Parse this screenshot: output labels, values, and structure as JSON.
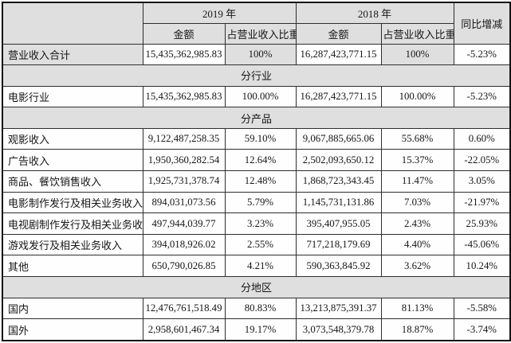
{
  "table": {
    "header": {
      "corner": "",
      "year_2019": "2019 年",
      "year_2018": "2018 年",
      "yoy": "同比增减",
      "amount": "金额",
      "share": "占营业收入比重"
    },
    "rows": [
      {
        "type": "data",
        "highlight": true,
        "label": "营业收入合计",
        "cells": [
          "15,435,362,985.83",
          "100%",
          "16,287,423,771.15",
          "100%",
          "-5.23%"
        ]
      },
      {
        "type": "section",
        "label": "分行业"
      },
      {
        "type": "data",
        "highlight": false,
        "label": "电影行业",
        "cells": [
          "15,435,362,985.83",
          "100.00%",
          "16,287,423,771.15",
          "100.00%",
          "-5.23%"
        ]
      },
      {
        "type": "section",
        "label": "分产品"
      },
      {
        "type": "data",
        "highlight": false,
        "label": "观影收入",
        "cells": [
          "9,122,487,258.35",
          "59.10%",
          "9,067,885,665.06",
          "55.68%",
          "0.60%"
        ]
      },
      {
        "type": "data",
        "highlight": false,
        "label": "广告收入",
        "cells": [
          "1,950,360,282.54",
          "12.64%",
          "2,502,093,650.12",
          "15.37%",
          "-22.05%"
        ]
      },
      {
        "type": "data",
        "highlight": false,
        "label": "商品、餐饮销售收入",
        "cells": [
          "1,925,731,378.74",
          "12.48%",
          "1,868,723,343.45",
          "11.47%",
          "3.05%"
        ]
      },
      {
        "type": "data",
        "highlight": false,
        "label": "电影制作发行及相关业务收入",
        "cells": [
          "894,031,073.56",
          "5.79%",
          "1,145,731,131.86",
          "7.03%",
          "-21.97%"
        ]
      },
      {
        "type": "data",
        "highlight": false,
        "label": "电视剧制作发行及相关业务收入",
        "cells": [
          "497,944,039.77",
          "3.23%",
          "395,407,955.05",
          "2.43%",
          "25.93%"
        ]
      },
      {
        "type": "data",
        "highlight": false,
        "label": "游戏发行及相关业务收入",
        "cells": [
          "394,018,926.02",
          "2.55%",
          "717,218,179.69",
          "4.40%",
          "-45.06%"
        ]
      },
      {
        "type": "data",
        "highlight": false,
        "label": "其他",
        "cells": [
          "650,790,026.85",
          "4.21%",
          "590,363,845.92",
          "3.62%",
          "10.24%"
        ]
      },
      {
        "type": "section",
        "label": "分地区"
      },
      {
        "type": "data",
        "highlight": false,
        "label": "国内",
        "cells": [
          "12,476,761,518.49",
          "80.83%",
          "13,213,875,391.37",
          "81.13%",
          "-5.58%"
        ]
      },
      {
        "type": "data",
        "highlight": false,
        "label": "国外",
        "cells": [
          "2,958,601,467.34",
          "19.17%",
          "3,073,548,379.78",
          "18.87%",
          "-3.74%"
        ]
      }
    ]
  },
  "colors": {
    "shaded_bg": "#dfdfdf",
    "border": "#2e2e2e",
    "text": "#161616",
    "page_bg": "#fbfbfa"
  }
}
